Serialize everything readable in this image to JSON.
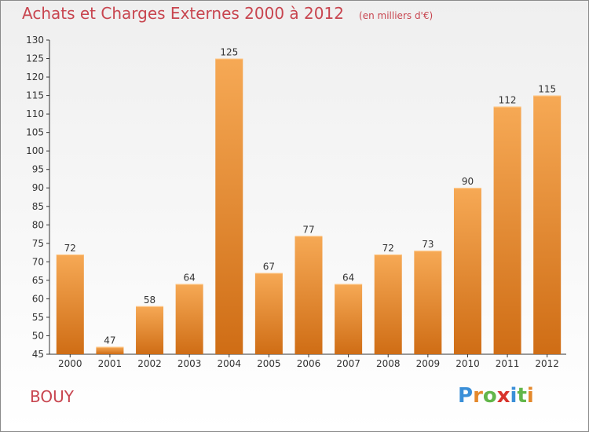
{
  "header": {
    "title": "Achats et Charges Externes 2000 à 2012",
    "unit": "(en milliers d'€)"
  },
  "footer": {
    "commune": "BOUY",
    "brand_letters": [
      "P",
      "r",
      "o",
      "x",
      "i",
      "t",
      "i"
    ],
    "brand_colors": [
      "#3a8fd8",
      "#e4882b",
      "#62b64a",
      "#d8342c",
      "#3a8fd8",
      "#62b64a",
      "#e4882b"
    ]
  },
  "colors": {
    "accent_text": "#c8454f",
    "bar_light": "#f6a955",
    "bar_dark": "#cf6d15",
    "axis": "#333333"
  },
  "chart_data": {
    "type": "bar",
    "title": "Achats et Charges Externes 2000 à 2012",
    "categories": [
      "2000",
      "2001",
      "2002",
      "2003",
      "2004",
      "2005",
      "2006",
      "2007",
      "2008",
      "2009",
      "2010",
      "2011",
      "2012"
    ],
    "values": [
      72,
      47,
      58,
      64,
      125,
      67,
      77,
      64,
      72,
      73,
      90,
      112,
      115
    ],
    "ylim": [
      45,
      130
    ],
    "yticks": [
      45,
      50,
      55,
      60,
      65,
      70,
      75,
      80,
      85,
      90,
      95,
      100,
      105,
      110,
      115,
      120,
      125,
      130
    ],
    "xlabel": "",
    "ylabel": "",
    "grid": false,
    "legend": "none"
  }
}
